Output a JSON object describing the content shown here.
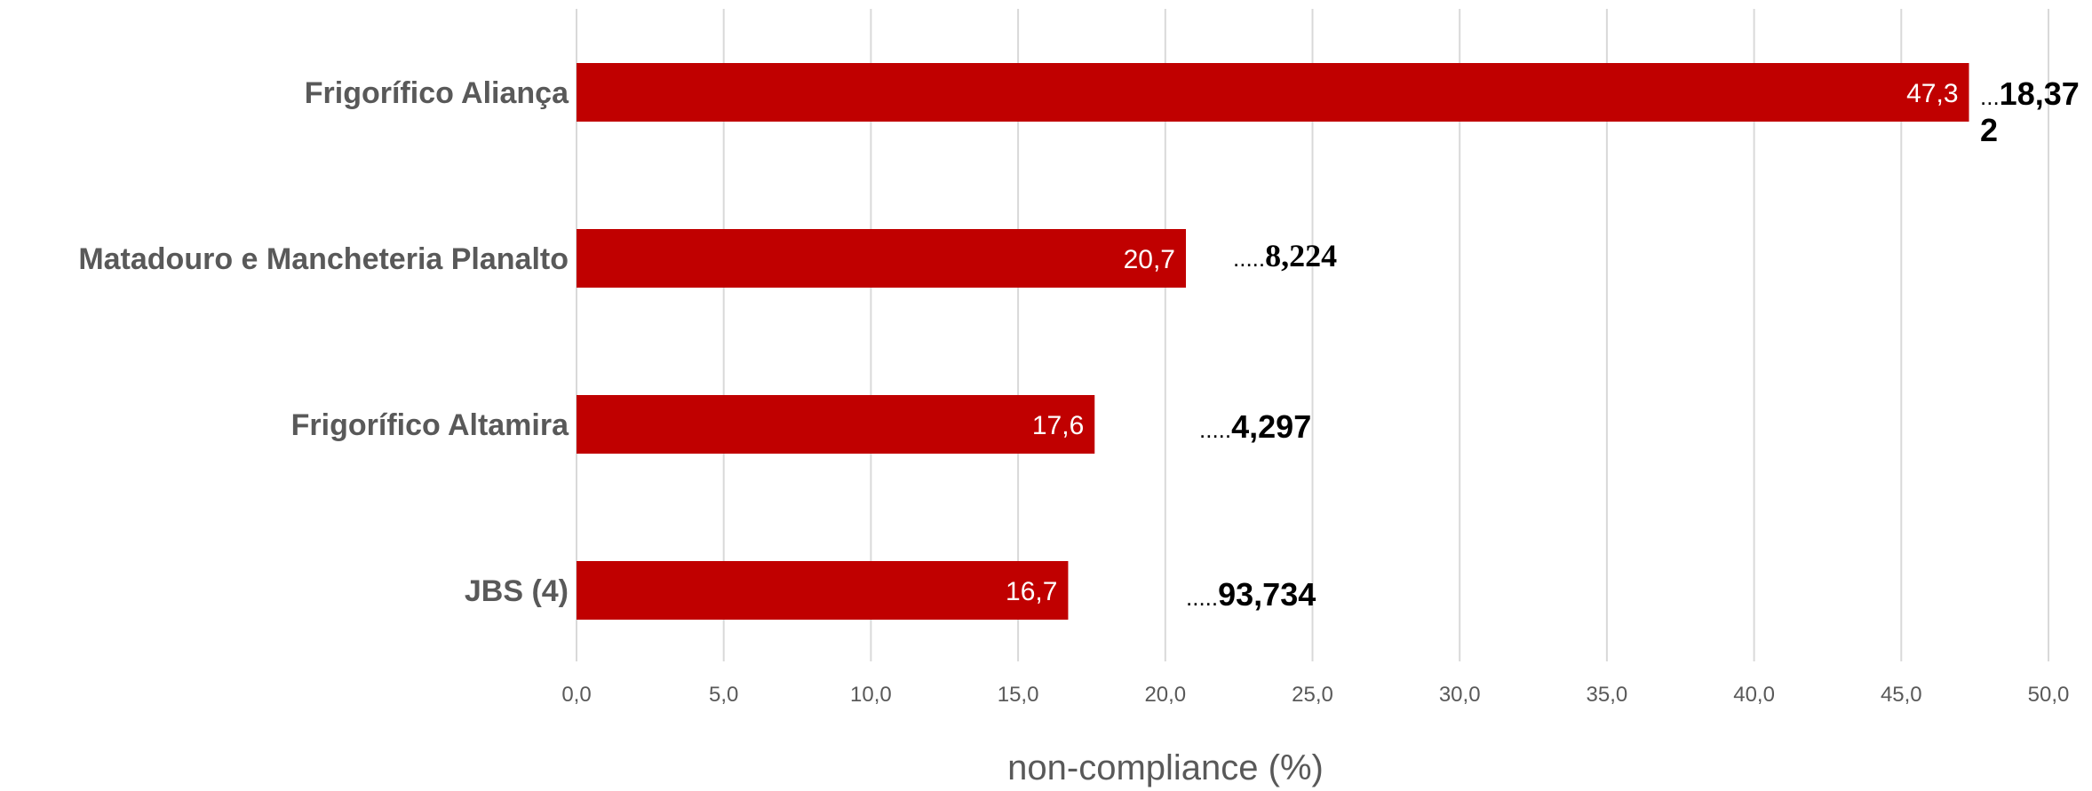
{
  "chart_data": {
    "type": "bar",
    "orientation": "horizontal",
    "categories": [
      "Frigorífico Aliança",
      "Matadouro e Mancheteria Planalto",
      "Frigorífico Altamira",
      "JBS (4)"
    ],
    "values": [
      47.3,
      20.7,
      17.6,
      16.7
    ],
    "value_labels": [
      "47,3",
      "20,7",
      "17,6",
      "16,7"
    ],
    "annotations": [
      {
        "dots": "...",
        "text": "18,37",
        "text_cont": "2"
      },
      {
        "dots": ".....",
        "text": "8,224",
        "text_cont": ""
      },
      {
        "dots": ".....",
        "text": "4,297",
        "text_cont": ""
      },
      {
        "dots": ".....",
        "text": "93,734",
        "text_cont": ""
      }
    ],
    "xlabel": "non-compliance (%)",
    "ylabel": "",
    "xlim": [
      0,
      50
    ],
    "xticks": [
      0,
      5,
      10,
      15,
      20,
      25,
      30,
      35,
      40,
      45,
      50
    ],
    "xtick_labels": [
      "0,0",
      "5,0",
      "10,0",
      "15,0",
      "20,0",
      "25,0",
      "30,0",
      "35,0",
      "40,0",
      "45,0",
      "50,0"
    ],
    "grid": true,
    "legend": "none",
    "bar_color": "#c00000"
  }
}
